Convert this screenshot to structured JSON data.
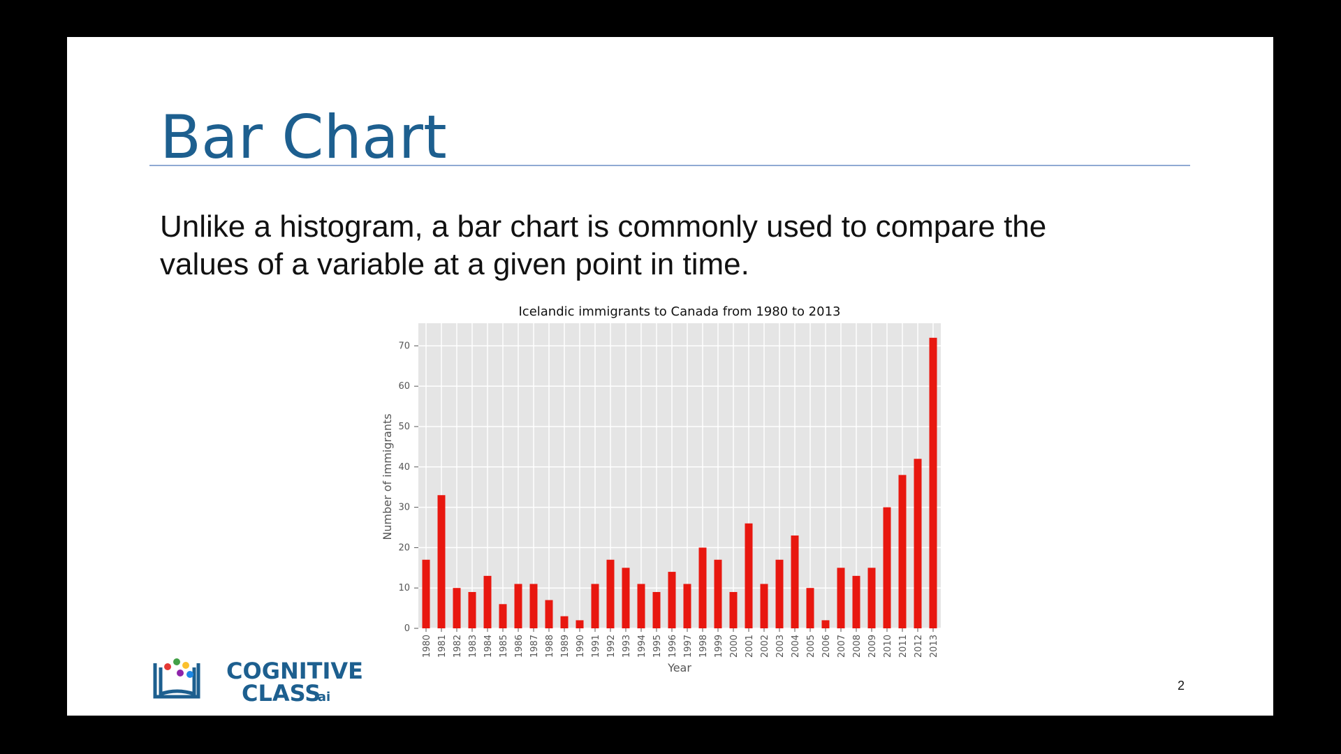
{
  "slide": {
    "title": "Bar Chart",
    "body_lines": [
      "Unlike a histogram, a bar chart is commonly used to compare the",
      "values of a variable at a given point in time."
    ],
    "logo": {
      "line1": "COGNITIVE",
      "line2": "CLASS",
      "suffix": ".ai"
    },
    "page_number": "2"
  },
  "chart_data": {
    "type": "bar",
    "title": "Icelandic immigrants to Canada from 1980 to 2013",
    "x_label": "Year",
    "y_label": "Number of immigrants",
    "categories": [
      "1980",
      "1981",
      "1982",
      "1983",
      "1984",
      "1985",
      "1986",
      "1987",
      "1988",
      "1989",
      "1990",
      "1991",
      "1992",
      "1993",
      "1994",
      "1995",
      "1996",
      "1997",
      "1998",
      "1999",
      "2000",
      "2001",
      "2002",
      "2003",
      "2004",
      "2005",
      "2006",
      "2007",
      "2008",
      "2009",
      "2010",
      "2011",
      "2012",
      "2013"
    ],
    "values": [
      17,
      33,
      10,
      9,
      13,
      6,
      11,
      11,
      7,
      3,
      2,
      11,
      17,
      15,
      11,
      9,
      14,
      11,
      20,
      17,
      9,
      26,
      11,
      17,
      23,
      10,
      2,
      15,
      13,
      15,
      30,
      38,
      42,
      72
    ],
    "color": "#e8170f",
    "ylim": [
      0,
      75.6
    ],
    "yticks": [
      0,
      10,
      20,
      30,
      40,
      50,
      60,
      70
    ],
    "grid": true
  }
}
